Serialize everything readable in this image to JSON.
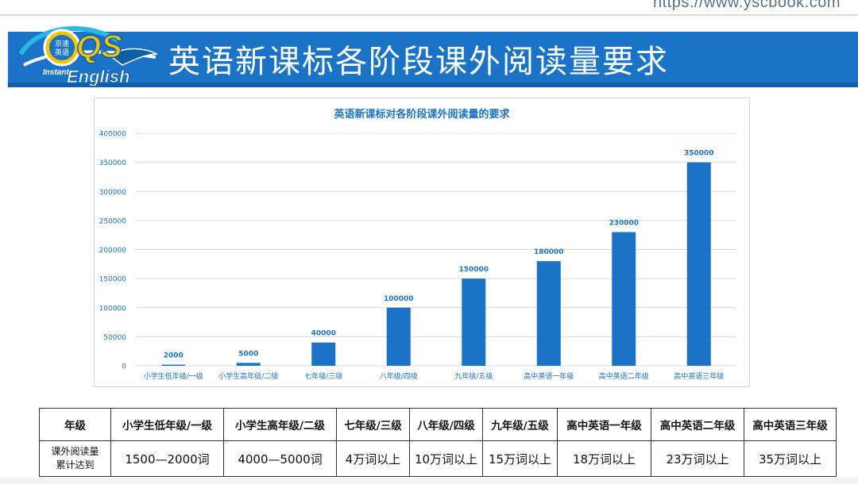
{
  "url": "https://www.yscbook.com",
  "page_title": "英语新课标各阶段课外阅读量要求",
  "logo": {
    "badge_top": "京速",
    "badge_bottom": "英语",
    "letters": "QS",
    "brand_small": "Instant",
    "brand": "English",
    "colors": {
      "blue": "#1a73c6",
      "yellow": "#f5c400",
      "cyan": "#29b6e8"
    }
  },
  "chart_data": {
    "type": "bar",
    "title": "英语新课标对各阶段课外阅读量的要求",
    "categories": [
      "小学生低年级/一级",
      "小学生高年级/二级",
      "七年级/三级",
      "八年级/四级",
      "九年级/五级",
      "高中英语一年级",
      "高中英语二年级",
      "高中英语三年级"
    ],
    "values": [
      2000,
      5000,
      40000,
      100000,
      150000,
      180000,
      230000,
      350000
    ],
    "data_labels": [
      "2000",
      "5000",
      "40000",
      "100000",
      "150000",
      "180000",
      "230000",
      "350000"
    ],
    "yticks": [
      "0",
      "50000",
      "100000",
      "150000",
      "200000",
      "250000",
      "300000",
      "350000",
      "400000"
    ],
    "ylim": [
      0,
      400000
    ],
    "xlabel": "",
    "ylabel": "",
    "grid": true,
    "bar_color": "#1a73c6",
    "label_color": "#1a73c6",
    "title_color": "#1a73c6",
    "tick_color": "#1a73c6",
    "grid_color": "#d9d9d9"
  },
  "table": {
    "header": [
      "年级",
      "小学生低年级/一级",
      "小学生高年级/二级",
      "七年级/三级",
      "八年级/四级",
      "九年级/五级",
      "高中英语一年级",
      "高中英语二年级",
      "高中英语三年级"
    ],
    "row_label_line1": "课外阅读量",
    "row_label_line2": "累计达到",
    "row_values": [
      "1500—2000词",
      "4000—5000词",
      "4万词以上",
      "10万词以上",
      "15万词以上",
      "18万词以上",
      "23万词以上",
      "35万词以上"
    ]
  }
}
